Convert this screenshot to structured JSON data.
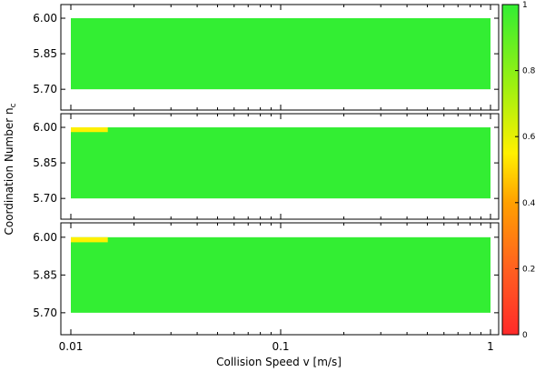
{
  "chart_data": {
    "type": "heatmap",
    "xlabel": "Collision Speed v [m/s]",
    "ylabel_main": "Coordination Number n",
    "ylabel_sub": "c",
    "x_scale": "log",
    "xlim": [
      0.01,
      1
    ],
    "x_ticks": [
      {
        "value": 0.01,
        "label": "0.01"
      },
      {
        "value": 0.1,
        "label": "0.1"
      },
      {
        "value": 1,
        "label": "1"
      }
    ],
    "ylim": [
      5.62,
      6.05
    ],
    "y_ticks": [
      {
        "value": 6.0,
        "label": "6.00"
      },
      {
        "value": 5.85,
        "label": "5.85"
      },
      {
        "value": 5.7,
        "label": "5.70"
      }
    ],
    "colorbar": {
      "range": [
        0,
        1
      ],
      "ticks": [
        {
          "value": 1,
          "label": "1"
        },
        {
          "value": 0.8,
          "label": "0.8"
        },
        {
          "value": 0.6,
          "label": "0.6"
        },
        {
          "value": 0.4,
          "label": "0.4"
        },
        {
          "value": 0.2,
          "label": "0.2"
        },
        {
          "value": 0,
          "label": "0"
        }
      ],
      "stops": [
        {
          "value": 0,
          "color": "#ff2a2a"
        },
        {
          "value": 0.2,
          "color": "#ff6020"
        },
        {
          "value": 0.4,
          "color": "#ffa000"
        },
        {
          "value": 0.55,
          "color": "#fff000"
        },
        {
          "value": 0.75,
          "color": "#a0f010"
        },
        {
          "value": 1,
          "color": "#33ee33"
        }
      ]
    },
    "panels": [
      {
        "cells": [
          {
            "x0": 0.01,
            "x1": 1,
            "y0": 5.7,
            "y1": 6.0,
            "value": 1
          }
        ]
      },
      {
        "cells": [
          {
            "x0": 0.01,
            "x1": 1,
            "y0": 5.7,
            "y1": 6.0,
            "value": 1
          },
          {
            "x0": 0.01,
            "x1": 0.015,
            "y0": 5.98,
            "y1": 6.0,
            "value": 0.55
          }
        ]
      },
      {
        "cells": [
          {
            "x0": 0.01,
            "x1": 1,
            "y0": 5.7,
            "y1": 6.0,
            "value": 1
          },
          {
            "x0": 0.01,
            "x1": 0.015,
            "y0": 5.98,
            "y1": 6.0,
            "value": 0.55
          }
        ]
      }
    ]
  }
}
